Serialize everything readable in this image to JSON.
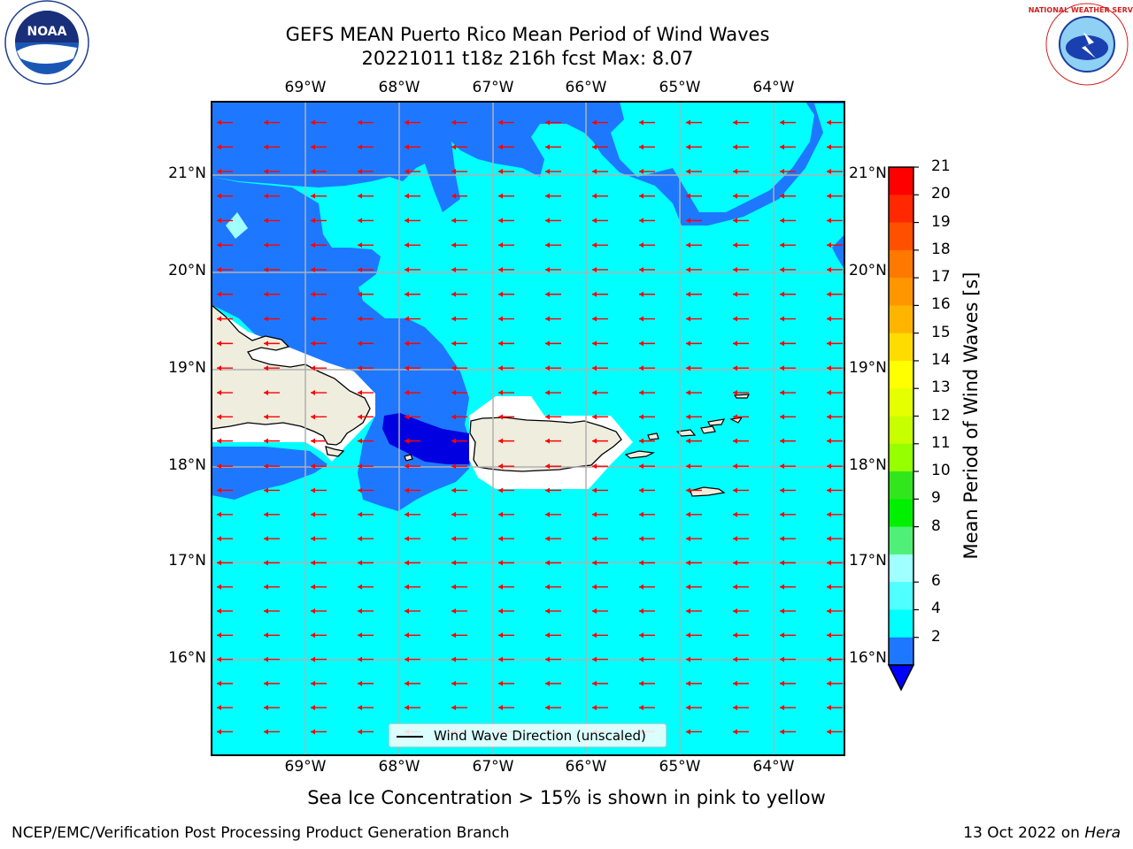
{
  "header": {
    "title_line1": "GEFS MEAN Puerto Rico Mean Period of Wind Waves",
    "title_line2": "20221011 t18z 216h fcst   Max: 8.07"
  },
  "map": {
    "lon_labels": [
      "69°W",
      "68°W",
      "67°W",
      "66°W",
      "65°W",
      "64°W"
    ],
    "lat_labels": [
      "21°N",
      "20°N",
      "19°N",
      "18°N",
      "17°N",
      "16°N"
    ],
    "colors": {
      "ocean_light": "#00ffff",
      "ocean_mid": "#1e78ff",
      "ocean_dark": "#0000e0",
      "land": "#efedde",
      "arrow": "#ff0000",
      "grid": "#b0b0b0"
    }
  },
  "legend": {
    "label": "Wind Wave Direction (unscaled)"
  },
  "colorbar": {
    "title": "Mean Period of Wind Waves [s]",
    "tick_labels": [
      "21",
      "20",
      "19",
      "18",
      "17",
      "16",
      "15",
      "14",
      "13",
      "12",
      "11",
      "10",
      "9",
      "8",
      "6",
      "4",
      "2"
    ],
    "colors": [
      "#ff0000",
      "#ff2800",
      "#ff5000",
      "#ff7800",
      "#ff9600",
      "#ffb400",
      "#ffdc00",
      "#ffff00",
      "#e6ff00",
      "#c8ff00",
      "#96ff00",
      "#32e61e",
      "#00f000",
      "#50f078",
      "#a0ffff",
      "#50ffff",
      "#00ffff",
      "#1e78ff"
    ],
    "extend_color": "#0000ff"
  },
  "footer": {
    "note": "Sea Ice Concentration > 15% is shown in pink to yellow",
    "left": "NCEP/EMC/Verification Post Processing Product Generation Branch",
    "right_prefix": "13 Oct 2022 on ",
    "right_host": "Hera"
  },
  "logos": {
    "left": "NOAA",
    "right": "NATIONAL WEATHER SERVICE"
  }
}
